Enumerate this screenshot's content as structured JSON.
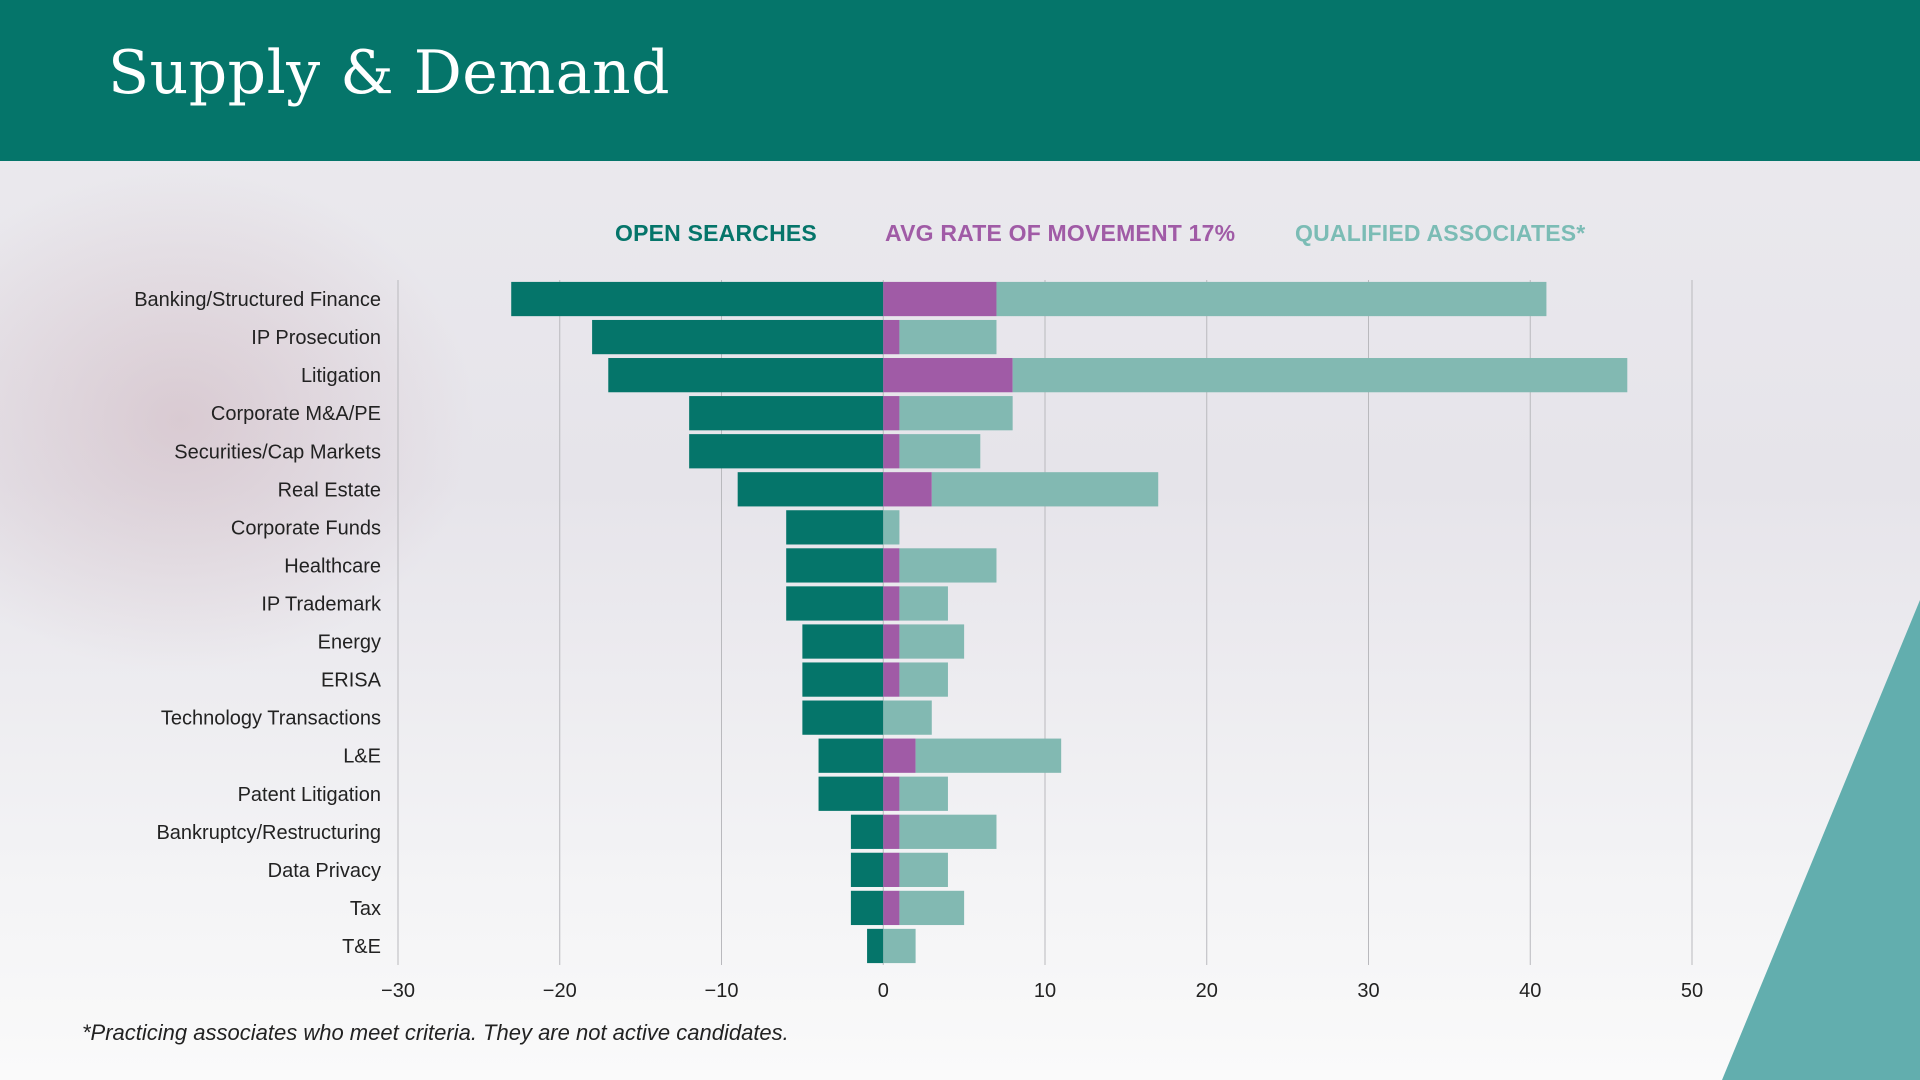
{
  "slide": {
    "title": "Supply & Demand",
    "footnote": "*Practicing associates who meet criteria. They are not active candidates."
  },
  "colors": {
    "header": "#05756a",
    "open_searches": "#05756a",
    "avg_movement": "#a05ba6",
    "qualified": "#82b9b2",
    "corner": "#62aeae"
  },
  "chart_data": {
    "type": "bar",
    "orientation": "horizontal",
    "stacking": "diverging",
    "categories": [
      "Banking/Structured Finance",
      "IP Prosecution",
      "Litigation",
      "Corporate M&A/PE",
      "Securities/Cap Markets",
      "Real Estate",
      "Corporate Funds",
      "Healthcare",
      "IP Trademark",
      "Energy",
      "ERISA",
      "Technology Transactions",
      "L&E",
      "Patent Litigation",
      "Bankruptcy/Restructuring",
      "Data Privacy",
      "Tax",
      "T&E"
    ],
    "series": [
      {
        "name": "OPEN SEARCHES",
        "values": [
          -23,
          -18,
          -17,
          -12,
          -12,
          -9,
          -6,
          -6,
          -6,
          -5,
          -5,
          -5,
          -4,
          -4,
          -2,
          -2,
          -2,
          -1
        ]
      },
      {
        "name": "AVG RATE OF  MOVEMENT 17%",
        "values": [
          7,
          1,
          8,
          1,
          1,
          3,
          0,
          1,
          1,
          1,
          1,
          0,
          2,
          1,
          1,
          1,
          1,
          0
        ]
      },
      {
        "name": "QUALIFIED ASSOCIATES*",
        "values": [
          34,
          6,
          38,
          7,
          5,
          14,
          1,
          6,
          3,
          4,
          3,
          3,
          9,
          3,
          6,
          3,
          4,
          2
        ]
      }
    ],
    "xlim": [
      -30,
      50
    ],
    "xticks": [
      -30,
      -20,
      -10,
      0,
      10,
      20,
      30,
      40,
      50
    ],
    "xtick_labels": [
      "−30",
      "−20",
      "−10",
      "0",
      "10",
      "20",
      "30",
      "40",
      "50"
    ],
    "grid": true,
    "legend_position": "top"
  }
}
